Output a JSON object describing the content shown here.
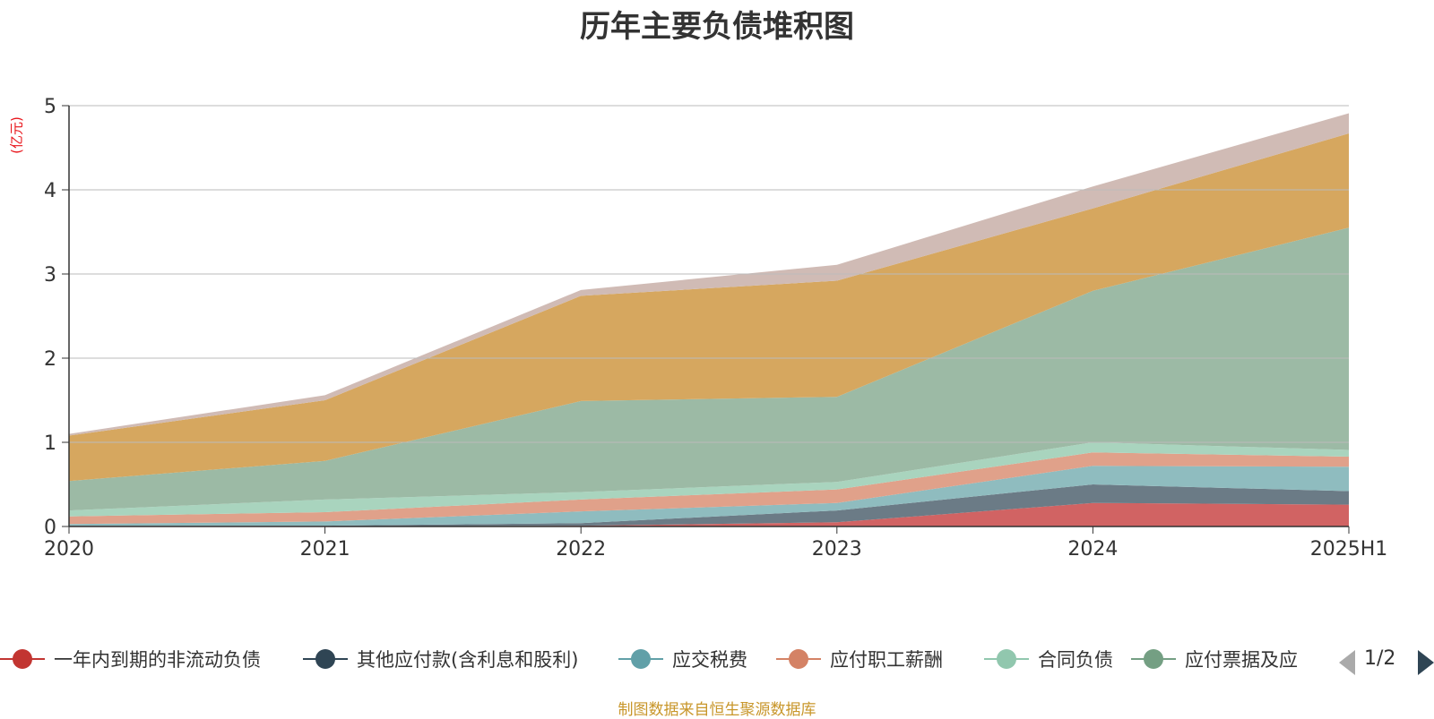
{
  "chart_data": {
    "type": "area",
    "stacked": true,
    "title": "历年主要负债堆积图",
    "y_unit_label": "(亿元)",
    "x": [
      "2020",
      "2021",
      "2022",
      "2023",
      "2024",
      "2025H1"
    ],
    "ylim": [
      0,
      5
    ],
    "yticks": [
      0,
      1,
      2,
      3,
      4,
      5
    ],
    "grid": true,
    "legend_position": "bottom",
    "series": [
      {
        "name": "一年内到期的非流动负债",
        "color": "#d16363",
        "values": [
          0.0,
          0.0,
          0.01,
          0.05,
          0.28,
          0.26
        ]
      },
      {
        "name": "其他应付款(含利息和股利)",
        "color": "#6b7b86",
        "values": [
          0.01,
          0.01,
          0.03,
          0.14,
          0.22,
          0.16
        ]
      },
      {
        "name": "应交税费",
        "color": "#8fbcbf",
        "values": [
          0.02,
          0.05,
          0.14,
          0.09,
          0.22,
          0.29
        ]
      },
      {
        "name": "应付职工薪酬",
        "color": "#e0a18a",
        "values": [
          0.09,
          0.11,
          0.14,
          0.16,
          0.16,
          0.12
        ]
      },
      {
        "name": "合同负债",
        "color": "#a9d4be",
        "values": [
          0.07,
          0.15,
          0.09,
          0.09,
          0.12,
          0.08
        ]
      },
      {
        "name": "应付票据及应付账款",
        "color": "#9cbaa5",
        "values": [
          0.35,
          0.46,
          1.08,
          1.01,
          1.8,
          2.64
        ]
      },
      {
        "name": "",
        "color": "#d6a75f",
        "values": [
          0.54,
          0.72,
          1.25,
          1.38,
          0.98,
          1.12
        ]
      },
      {
        "name": "",
        "color": "#d0bbb5",
        "values": [
          0.02,
          0.06,
          0.07,
          0.19,
          0.26,
          0.24
        ]
      }
    ]
  },
  "legend": {
    "items": [
      {
        "label": "一年内到期的非流动负债",
        "color": "#c23531"
      },
      {
        "label": "其他应付款(含利息和股利)",
        "color": "#2f4554"
      },
      {
        "label": "应交税费",
        "color": "#61a0a8"
      },
      {
        "label": "应付职工薪酬",
        "color": "#d48265"
      },
      {
        "label": "合同负债",
        "color": "#91c7ae"
      },
      {
        "label": "应付票据及应",
        "color": "#749f83"
      }
    ],
    "page_indicator": "1/2"
  },
  "footer": {
    "source_note": "制图数据来自恒生聚源数据库"
  }
}
